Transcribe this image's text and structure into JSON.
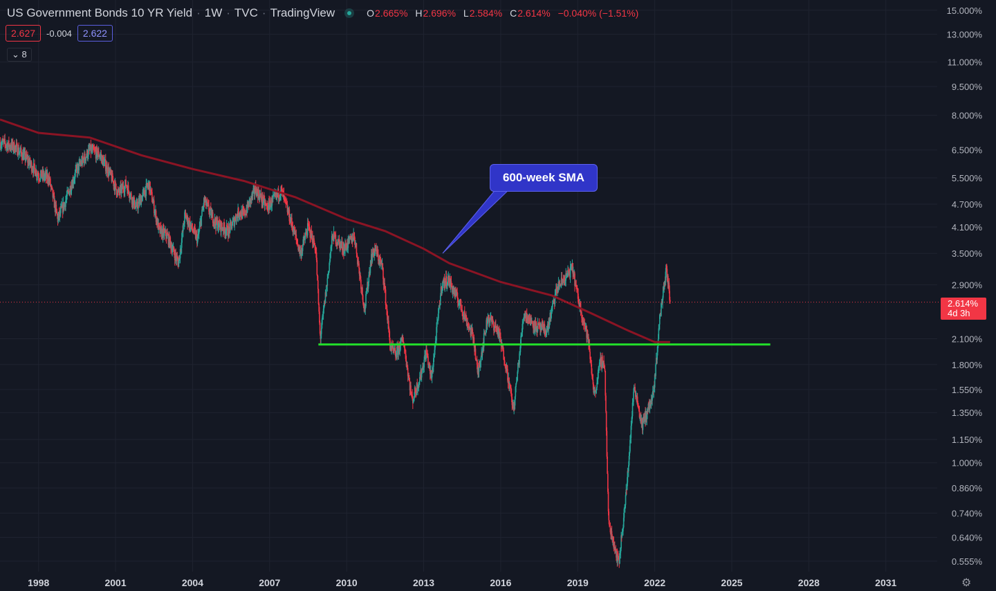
{
  "header": {
    "title": "US Government Bonds 10 YR Yield",
    "interval": "1W",
    "source": "TVC",
    "platform": "TradingView",
    "ohlc": {
      "o_label": "O",
      "o_value": "2.665%",
      "h_label": "H",
      "h_value": "2.696%",
      "l_label": "L",
      "l_value": "2.584%",
      "c_label": "C",
      "c_value": "2.614%",
      "change": "−0.040% (−1.51%)"
    },
    "bid": "2.627",
    "spread": "-0.004",
    "ask": "2.622",
    "indicators_count": "8"
  },
  "price_tag": {
    "value": "2.614%",
    "countdown": "4d 3h"
  },
  "annotation": {
    "label": "600-week SMA"
  },
  "colors": {
    "background": "#141823",
    "up": "#26a69a",
    "down": "#f23645",
    "sma": "#8b1424",
    "support": "#22e02a",
    "callout": "#3035c8"
  },
  "chart_data": {
    "type": "candlestick",
    "scale": "log",
    "x_range": [
      1996.5,
      2033
    ],
    "y_range": [
      0.53,
      15.3
    ],
    "x_ticks": [
      "1998",
      "2001",
      "2004",
      "2007",
      "2010",
      "2013",
      "2016",
      "2019",
      "2022",
      "2025",
      "2028",
      "2031"
    ],
    "y_ticks": [
      "15.000%",
      "13.000%",
      "11.000%",
      "9.500%",
      "8.000%",
      "6.500%",
      "5.500%",
      "4.700%",
      "4.100%",
      "3.500%",
      "2.900%",
      "2.100%",
      "1.800%",
      "1.550%",
      "1.350%",
      "1.150%",
      "1.000%",
      "0.860%",
      "0.740%",
      "0.640%",
      "0.555%"
    ],
    "last_price": 2.614,
    "price_path": [
      [
        1996.5,
        6.8
      ],
      [
        1997.1,
        6.6
      ],
      [
        1997.5,
        6.2
      ],
      [
        1998.0,
        5.6
      ],
      [
        1998.4,
        5.5
      ],
      [
        1998.75,
        4.3
      ],
      [
        1999.0,
        4.7
      ],
      [
        1999.5,
        5.8
      ],
      [
        2000.0,
        6.5
      ],
      [
        2000.4,
        6.3
      ],
      [
        2000.8,
        5.6
      ],
      [
        2001.1,
        5.0
      ],
      [
        2001.4,
        5.3
      ],
      [
        2001.8,
        4.6
      ],
      [
        2002.3,
        5.3
      ],
      [
        2002.7,
        4.0
      ],
      [
        2003.0,
        3.9
      ],
      [
        2003.45,
        3.3
      ],
      [
        2003.7,
        4.4
      ],
      [
        2004.2,
        3.8
      ],
      [
        2004.45,
        4.8
      ],
      [
        2004.9,
        4.2
      ],
      [
        2005.4,
        4.0
      ],
      [
        2005.8,
        4.5
      ],
      [
        2006.0,
        4.4
      ],
      [
        2006.45,
        5.15
      ],
      [
        2006.9,
        4.6
      ],
      [
        2007.45,
        5.1
      ],
      [
        2007.9,
        4.1
      ],
      [
        2008.2,
        3.5
      ],
      [
        2008.5,
        4.1
      ],
      [
        2008.8,
        3.6
      ],
      [
        2008.97,
        2.1
      ],
      [
        2009.2,
        2.8
      ],
      [
        2009.45,
        3.9
      ],
      [
        2009.9,
        3.6
      ],
      [
        2010.3,
        3.9
      ],
      [
        2010.7,
        2.5
      ],
      [
        2010.95,
        3.4
      ],
      [
        2011.1,
        3.6
      ],
      [
        2011.4,
        3.2
      ],
      [
        2011.7,
        2.0
      ],
      [
        2011.9,
        1.9
      ],
      [
        2012.2,
        2.1
      ],
      [
        2012.55,
        1.45
      ],
      [
        2012.9,
        1.7
      ],
      [
        2013.1,
        1.95
      ],
      [
        2013.3,
        1.65
      ],
      [
        2013.7,
        2.9
      ],
      [
        2013.95,
        3.0
      ],
      [
        2014.4,
        2.6
      ],
      [
        2014.95,
        2.1
      ],
      [
        2015.1,
        1.7
      ],
      [
        2015.5,
        2.4
      ],
      [
        2015.9,
        2.2
      ],
      [
        2016.2,
        1.8
      ],
      [
        2016.5,
        1.37
      ],
      [
        2016.9,
        2.45
      ],
      [
        2017.4,
        2.25
      ],
      [
        2017.8,
        2.2
      ],
      [
        2018.2,
        2.85
      ],
      [
        2018.8,
        3.2
      ],
      [
        2019.0,
        2.7
      ],
      [
        2019.4,
        2.1
      ],
      [
        2019.65,
        1.5
      ],
      [
        2019.9,
        1.85
      ],
      [
        2020.05,
        1.8
      ],
      [
        2020.2,
        0.7
      ],
      [
        2020.6,
        0.55
      ],
      [
        2020.9,
        0.85
      ],
      [
        2021.2,
        1.6
      ],
      [
        2021.5,
        1.25
      ],
      [
        2021.95,
        1.5
      ],
      [
        2022.2,
        2.4
      ],
      [
        2022.45,
        3.2
      ],
      [
        2022.6,
        2.614
      ]
    ],
    "series": [
      {
        "name": "600-week SMA",
        "points": [
          [
            1996.5,
            7.8
          ],
          [
            1998,
            7.2
          ],
          [
            2000,
            7.0
          ],
          [
            2002,
            6.3
          ],
          [
            2004,
            5.8
          ],
          [
            2006,
            5.4
          ],
          [
            2008,
            4.9
          ],
          [
            2010,
            4.3
          ],
          [
            2011.5,
            4.0
          ],
          [
            2013,
            3.6
          ],
          [
            2014,
            3.3
          ],
          [
            2016,
            2.95
          ],
          [
            2018,
            2.72
          ],
          [
            2019.5,
            2.45
          ],
          [
            2021,
            2.2
          ],
          [
            2022,
            2.06
          ],
          [
            2022.6,
            2.06
          ]
        ]
      },
      {
        "name": "support",
        "points": [
          [
            2008.9,
            2.03
          ],
          [
            2026.5,
            2.03
          ]
        ]
      }
    ]
  }
}
